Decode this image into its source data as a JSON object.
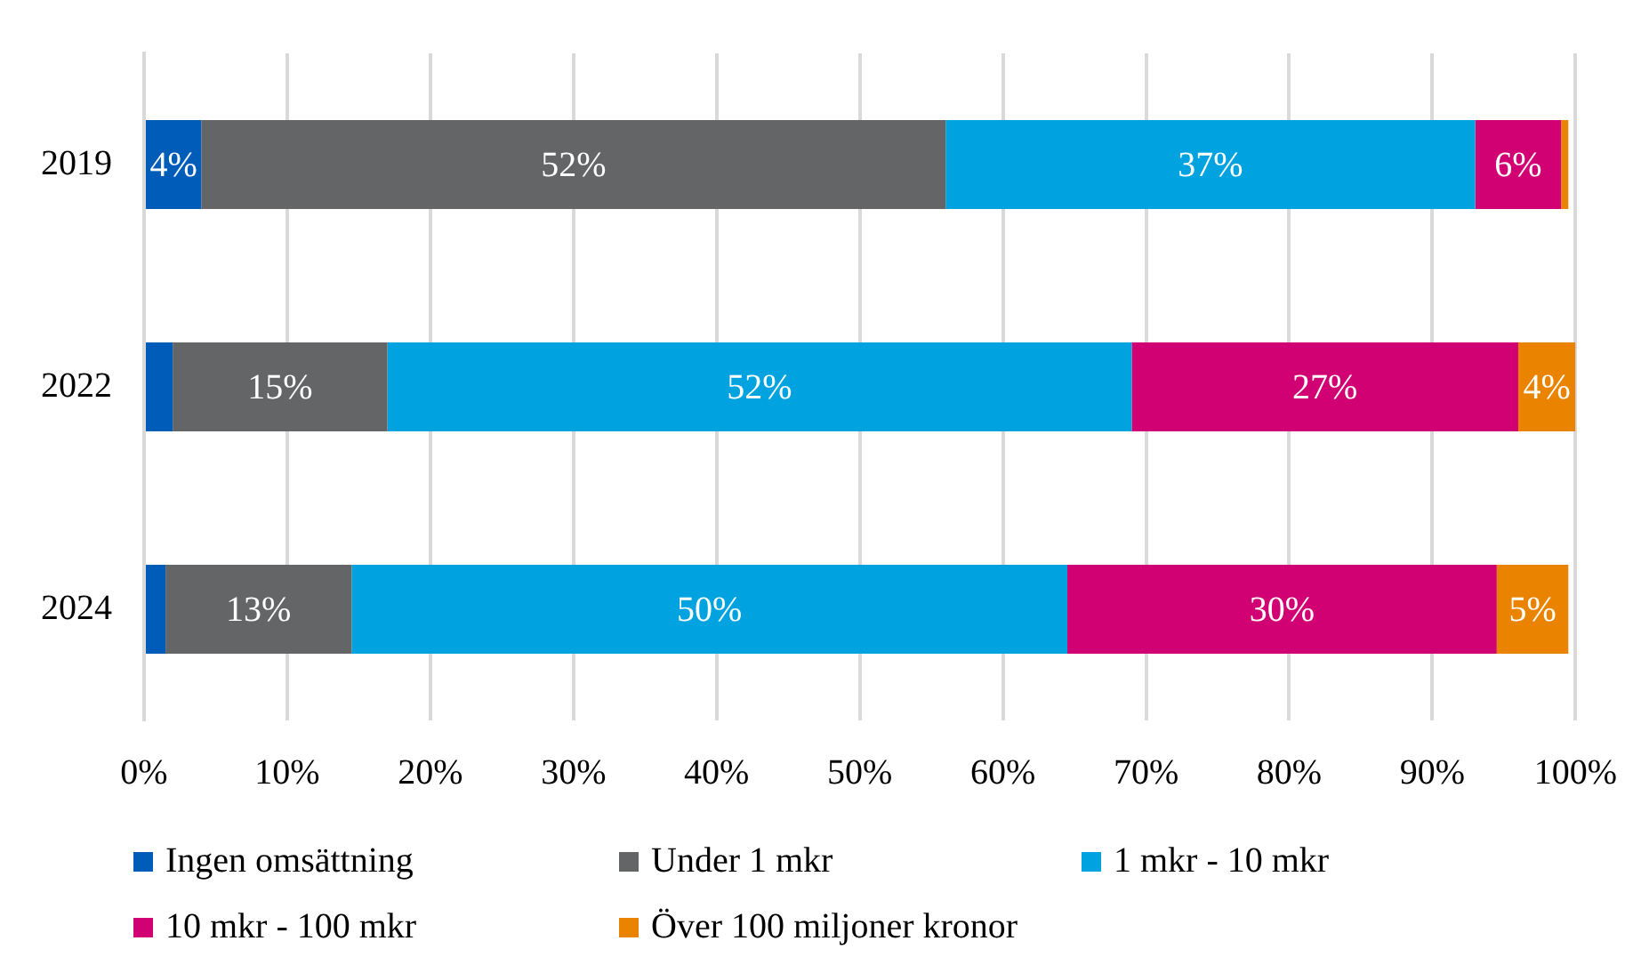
{
  "chart_data": {
    "type": "bar",
    "orientation": "horizontal",
    "stacked": true,
    "categories": [
      "2019",
      "2022",
      "2024"
    ],
    "series": [
      {
        "name": "Ingen omsättning",
        "color": "#005cb9",
        "values": [
          4,
          2,
          1.5
        ],
        "value_labels": [
          "4%",
          null,
          null
        ]
      },
      {
        "name": "Under 1 mkr",
        "color": "#646567",
        "values": [
          52,
          15,
          13
        ],
        "value_labels": [
          "52%",
          "15%",
          "13%"
        ]
      },
      {
        "name": "1 mkr - 10 mkr",
        "color": "#00a3e0",
        "values": [
          37,
          52,
          50
        ],
        "value_labels": [
          "37%",
          "52%",
          "50%"
        ]
      },
      {
        "name": "10 mkr - 100 mkr",
        "color": "#d10073",
        "values": [
          6,
          27,
          30
        ],
        "value_labels": [
          "6%",
          "27%",
          "30%"
        ]
      },
      {
        "name": "Över 100 miljoner kronor",
        "color": "#e98300",
        "values": [
          0.5,
          4,
          5
        ],
        "value_labels": [
          null,
          "4%",
          "5%"
        ]
      }
    ],
    "xlim": [
      0,
      100
    ],
    "xticks": [
      {
        "value": 0,
        "label": "0%"
      },
      {
        "value": 10,
        "label": "10%"
      },
      {
        "value": 20,
        "label": "20%"
      },
      {
        "value": 30,
        "label": "30%"
      },
      {
        "value": 40,
        "label": "40%"
      },
      {
        "value": 50,
        "label": "50%"
      },
      {
        "value": 60,
        "label": "60%"
      },
      {
        "value": 70,
        "label": "70%"
      },
      {
        "value": 80,
        "label": "80%"
      },
      {
        "value": 90,
        "label": "90%"
      },
      {
        "value": 100,
        "label": "100%"
      }
    ],
    "grid": "x",
    "legend": "bottom"
  }
}
